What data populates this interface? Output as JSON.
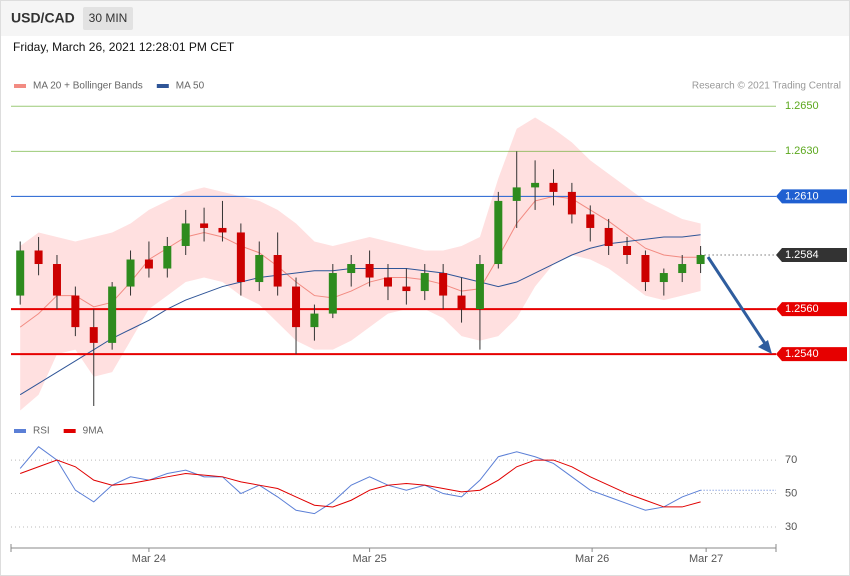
{
  "chart_data": [
    {
      "type": "candlestick",
      "title": "USD/CAD",
      "timeframe": "30 MIN",
      "subtitle": "Friday, March 26, 2021 12:28:01 PM CET",
      "credit": "Research © 2021 Trading Central",
      "xlim": [
        -0.5,
        41.1
      ],
      "ylim": [
        1.2513,
        1.2655
      ],
      "up_color": "#2e8b1e",
      "down_color": "#cc0000",
      "levels": [
        {
          "value": 1.265,
          "label": "1.2650",
          "color": "#5ca81e",
          "label_box": false,
          "dotted": false
        },
        {
          "value": 1.263,
          "label": "1.2630",
          "color": "#5ca81e",
          "label_box": false,
          "dotted": false
        },
        {
          "value": 1.261,
          "label": "1.2610",
          "color": "#1f5fd1",
          "label_box": true,
          "dotted": false
        },
        {
          "value": 1.2584,
          "label": "1.2584",
          "color": "#333333",
          "label_box": true,
          "dotted": true
        },
        {
          "value": 1.256,
          "label": "1.2560",
          "color": "#e60000",
          "label_box": true,
          "dotted": false
        },
        {
          "value": 1.254,
          "label": "1.2540",
          "color": "#e60000",
          "label_box": true,
          "dotted": false
        }
      ],
      "open": [
        1.2566,
        1.2586,
        1.258,
        1.2566,
        1.2552,
        1.2545,
        1.257,
        1.2582,
        1.2578,
        1.2588,
        1.2598,
        1.2596,
        1.2594,
        1.2572,
        1.2584,
        1.257,
        1.2552,
        1.2558,
        1.2576,
        1.258,
        1.2574,
        1.257,
        1.2568,
        1.2576,
        1.2566,
        1.256,
        1.258,
        1.2608,
        1.2614,
        1.2616,
        1.2612,
        1.2602,
        1.2596,
        1.2588,
        1.2584,
        1.2572,
        1.2576,
        1.258
      ],
      "high": [
        1.259,
        1.2592,
        1.2584,
        1.257,
        1.256,
        1.2572,
        1.2586,
        1.259,
        1.2592,
        1.2604,
        1.2605,
        1.2608,
        1.2598,
        1.259,
        1.2594,
        1.2574,
        1.2562,
        1.258,
        1.2584,
        1.2586,
        1.258,
        1.2578,
        1.258,
        1.258,
        1.2574,
        1.2584,
        1.2612,
        1.263,
        1.2626,
        1.2622,
        1.2616,
        1.2606,
        1.26,
        1.2592,
        1.2586,
        1.2578,
        1.2584,
        1.2588
      ],
      "low": [
        1.2562,
        1.2575,
        1.256,
        1.2548,
        1.2517,
        1.2542,
        1.2566,
        1.2574,
        1.2574,
        1.2584,
        1.259,
        1.259,
        1.2566,
        1.2568,
        1.2566,
        1.254,
        1.2546,
        1.2556,
        1.257,
        1.257,
        1.2564,
        1.2562,
        1.2564,
        1.256,
        1.2554,
        1.2542,
        1.2578,
        1.2596,
        1.2604,
        1.2606,
        1.2598,
        1.259,
        1.2584,
        1.258,
        1.2568,
        1.2566,
        1.2572,
        1.2576
      ],
      "close": [
        1.2586,
        1.258,
        1.2566,
        1.2552,
        1.2545,
        1.257,
        1.2582,
        1.2578,
        1.2588,
        1.2598,
        1.2596,
        1.2594,
        1.2572,
        1.2584,
        1.257,
        1.2552,
        1.2558,
        1.2576,
        1.258,
        1.2574,
        1.257,
        1.2568,
        1.2576,
        1.2566,
        1.256,
        1.258,
        1.2608,
        1.2614,
        1.2616,
        1.2612,
        1.2602,
        1.2596,
        1.2588,
        1.2584,
        1.2572,
        1.2576,
        1.258,
        1.2584
      ],
      "series": [
        {
          "name": "MA 20 + Bollinger Bands",
          "color": "#f28b82",
          "band_color": "#ffe0e0",
          "values": [
            1.2552,
            1.2558,
            1.2566,
            1.2566,
            1.2561,
            1.2563,
            1.2572,
            1.2582,
            1.2587,
            1.2592,
            1.2594,
            1.2592,
            1.2588,
            1.2585,
            1.2579,
            1.2572,
            1.2566,
            1.2565,
            1.2568,
            1.2572,
            1.2574,
            1.2574,
            1.2573,
            1.2571,
            1.2568,
            1.2569,
            1.2583,
            1.2598,
            1.2608,
            1.261,
            1.2609,
            1.2604,
            1.2599,
            1.2593,
            1.2587,
            1.2584,
            1.2583,
            1.2583
          ],
          "upper": [
            1.2588,
            1.2594,
            1.2592,
            1.259,
            1.2592,
            1.2594,
            1.2598,
            1.2604,
            1.2608,
            1.2612,
            1.2614,
            1.2612,
            1.261,
            1.2608,
            1.2604,
            1.2598,
            1.259,
            1.2588,
            1.259,
            1.2592,
            1.259,
            1.2588,
            1.2586,
            1.2586,
            1.2588,
            1.2592,
            1.2618,
            1.264,
            1.2645,
            1.264,
            1.2634,
            1.2626,
            1.262,
            1.2614,
            1.2608,
            1.2604,
            1.26,
            1.2598
          ],
          "lower": [
            1.2515,
            1.2522,
            1.254,
            1.2542,
            1.253,
            1.2532,
            1.2546,
            1.256,
            1.2566,
            1.2572,
            1.2574,
            1.2572,
            1.2566,
            1.2562,
            1.2554,
            1.2546,
            1.2542,
            1.2542,
            1.2546,
            1.2552,
            1.2558,
            1.256,
            1.256,
            1.2556,
            1.2548,
            1.2546,
            1.2548,
            1.2556,
            1.257,
            1.258,
            1.2584,
            1.2582,
            1.2578,
            1.2572,
            1.2566,
            1.2564,
            1.2566,
            1.2568
          ]
        },
        {
          "name": "MA 50",
          "color": "#2f5597",
          "values": [
            1.2522,
            1.2527,
            1.2532,
            1.2537,
            1.2542,
            1.2547,
            1.2551,
            1.2555,
            1.256,
            1.2564,
            1.2567,
            1.257,
            1.2572,
            1.2574,
            1.2575,
            1.2576,
            1.2577,
            1.2577,
            1.2578,
            1.2578,
            1.2578,
            1.2578,
            1.2577,
            1.2576,
            1.2574,
            1.2572,
            1.257,
            1.2572,
            1.2576,
            1.258,
            1.2584,
            1.2587,
            1.2589,
            1.259,
            1.2591,
            1.2592,
            1.2592,
            1.2593
          ]
        }
      ]
    },
    {
      "type": "line",
      "xlim": [
        -0.5,
        41.1
      ],
      "ylim": [
        20,
        82
      ],
      "yticks": [
        30,
        50,
        70
      ],
      "xticks": [
        {
          "value": 7,
          "label": "Mar 24"
        },
        {
          "value": 19,
          "label": "Mar 25"
        },
        {
          "value": 31.1,
          "label": "Mar 26"
        },
        {
          "value": 37.3,
          "label": "Mar 27"
        }
      ],
      "series": [
        {
          "name": "RSI",
          "color": "#5b7fd6",
          "values": [
            65,
            78,
            70,
            52,
            45,
            55,
            60,
            58,
            62,
            64,
            60,
            60,
            50,
            55,
            48,
            40,
            38,
            45,
            55,
            60,
            55,
            52,
            55,
            50,
            48,
            58,
            72,
            75,
            72,
            68,
            60,
            52,
            48,
            44,
            40,
            42,
            48,
            52
          ]
        },
        {
          "name": "9MA",
          "color": "#e00000",
          "values": [
            62,
            66,
            70,
            66,
            58,
            55,
            56,
            58,
            60,
            62,
            61,
            60,
            57,
            55,
            53,
            48,
            43,
            42,
            46,
            52,
            55,
            56,
            55,
            53,
            51,
            52,
            58,
            66,
            70,
            70,
            66,
            60,
            55,
            50,
            46,
            42,
            42,
            45
          ]
        }
      ]
    }
  ]
}
